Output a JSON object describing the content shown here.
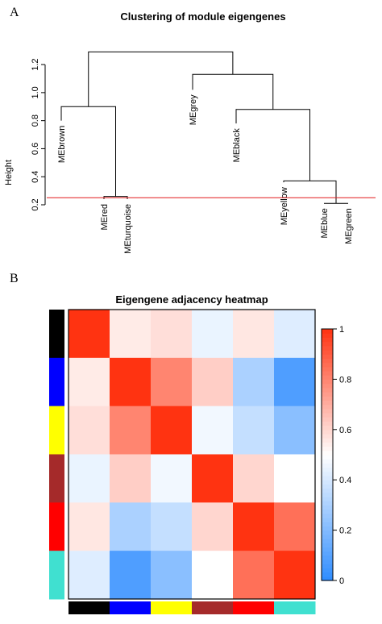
{
  "panels": {
    "a": "A",
    "b": "B"
  },
  "chart_data": [
    {
      "type": "dendrogram",
      "title": "Clustering of module eigengenes",
      "ylabel": "Height",
      "ylim": [
        0.2,
        1.35
      ],
      "yticks": [
        0.2,
        0.4,
        0.6,
        0.8,
        1.0,
        1.2
      ],
      "ytick_labels": [
        "0.2",
        "0.4",
        "0.6",
        "0.8",
        "1.0",
        "1.2"
      ],
      "cut_height": 0.25,
      "cut_color": "#e41a1c",
      "leaves": [
        {
          "label": "MEbrown",
          "height": 0.8
        },
        {
          "label": "MEred",
          "height": 0.24
        },
        {
          "label": "MEturquoise",
          "height": 0.24
        },
        {
          "label": "MEgrey",
          "height": 1.02
        },
        {
          "label": "MEblack",
          "height": 0.78
        },
        {
          "label": "MEyellow",
          "height": 0.36
        },
        {
          "label": "MEblue",
          "height": 0.21
        },
        {
          "label": "MEgreen",
          "height": 0.21
        }
      ],
      "merges": [
        {
          "left": 6,
          "right": 7,
          "height": 0.21
        },
        {
          "left": 1,
          "right": 2,
          "height": 0.26
        },
        {
          "left": 5,
          "right": "m0",
          "height": 0.37
        },
        {
          "left": 4,
          "right": "m2",
          "height": 0.88
        },
        {
          "left": 0,
          "right": "m1",
          "height": 0.9
        },
        {
          "left": 3,
          "right": "m3",
          "height": 1.13
        },
        {
          "left": "m4",
          "right": "m5",
          "height": 1.29
        }
      ]
    },
    {
      "type": "heatmap",
      "title": "Eigengene adjacency heatmap",
      "modules": [
        "black",
        "blue",
        "yellow",
        "brown",
        "red",
        "turquoise"
      ],
      "module_colors": [
        "#000000",
        "#0000ff",
        "#ffff00",
        "#a52a2a",
        "#ff0000",
        "#40e0d0"
      ],
      "values": [
        [
          1.0,
          0.55,
          0.58,
          0.45,
          0.56,
          0.42
        ],
        [
          0.55,
          1.0,
          0.8,
          0.62,
          0.3,
          0.08
        ],
        [
          0.58,
          0.8,
          1.0,
          0.47,
          0.36,
          0.22
        ],
        [
          0.45,
          0.62,
          0.47,
          1.0,
          0.6,
          0.5
        ],
        [
          0.56,
          0.3,
          0.36,
          0.6,
          1.0,
          0.85
        ],
        [
          0.42,
          0.08,
          0.22,
          0.5,
          0.85,
          1.0
        ]
      ],
      "colorbar_range": [
        0,
        1
      ],
      "colorbar_ticks": [
        0,
        0.2,
        0.4,
        0.6,
        0.8,
        1
      ],
      "colorbar_tick_labels": [
        "0",
        "0.2",
        "0.4",
        "0.6",
        "0.8",
        "1"
      ],
      "colormap": {
        "low": "#2e8cff",
        "mid": "#ffffff",
        "high": "#ff3311"
      }
    }
  ]
}
